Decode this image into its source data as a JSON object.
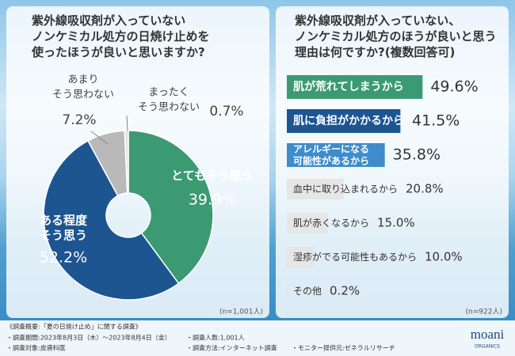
{
  "chart_data": [
    {
      "type": "pie",
      "title": "紫外線吸収剤が入っていない\nノンケミカル処方の日焼け止めを\n使ったほうが良いと思いますか?",
      "categories": [
        "とてもそう思う",
        "ある程度\nそう思う",
        "あまり\nそう思わない",
        "まったく\nそう思わない"
      ],
      "values": [
        39.9,
        52.2,
        7.2,
        0.7
      ],
      "value_labels": [
        "39.9%",
        "52.2%",
        "7.2%",
        "0.7%"
      ],
      "colors": [
        "#3c9a72",
        "#1d5591",
        "#b9b9b9",
        "#e2e2e2"
      ],
      "note": "(n=1,001人)"
    },
    {
      "type": "bar",
      "title": "紫外線吸収剤が入っていない、\nノンケミカル処方のほうが良いと思う\n理由は何ですか?(複数回答可)",
      "categories": [
        "肌が荒れてしまうから",
        "肌に負担がかかるから",
        "アレルギーになる\n可能性があるから",
        "血中に取り込まれるから",
        "肌が赤くなるから",
        "湿疹がでる可能性もあるから",
        "その他"
      ],
      "values": [
        49.6,
        41.5,
        35.8,
        20.8,
        15.0,
        10.0,
        0.2
      ],
      "value_labels": [
        "49.6%",
        "41.5%",
        "35.8%",
        "20.8%",
        "15.0%",
        "10.0%",
        "0.2%"
      ],
      "colors": [
        "#3c9a72",
        "#1d5591",
        "#3f8ccc",
        "#e6e6e6",
        "#e6e6e6",
        "#e6e6e6",
        "#e6e6e6"
      ],
      "xlim": [
        0,
        55
      ],
      "note": "(n=922人)"
    }
  ],
  "footer": {
    "heading": "《調査概要:「夏の日焼け止め」に関する調査》",
    "items": [
      "・調査期間:2023年8月3日（木）〜2023年8月4日（金）",
      "・調査人数:1,001人",
      "・調査対象:皮膚科医",
      "・調査方法:インターネット調査",
      "・モニター提供元:ゼネラルリサーチ"
    ]
  },
  "logo": {
    "name": "moani",
    "sub": "ORGANICS"
  }
}
